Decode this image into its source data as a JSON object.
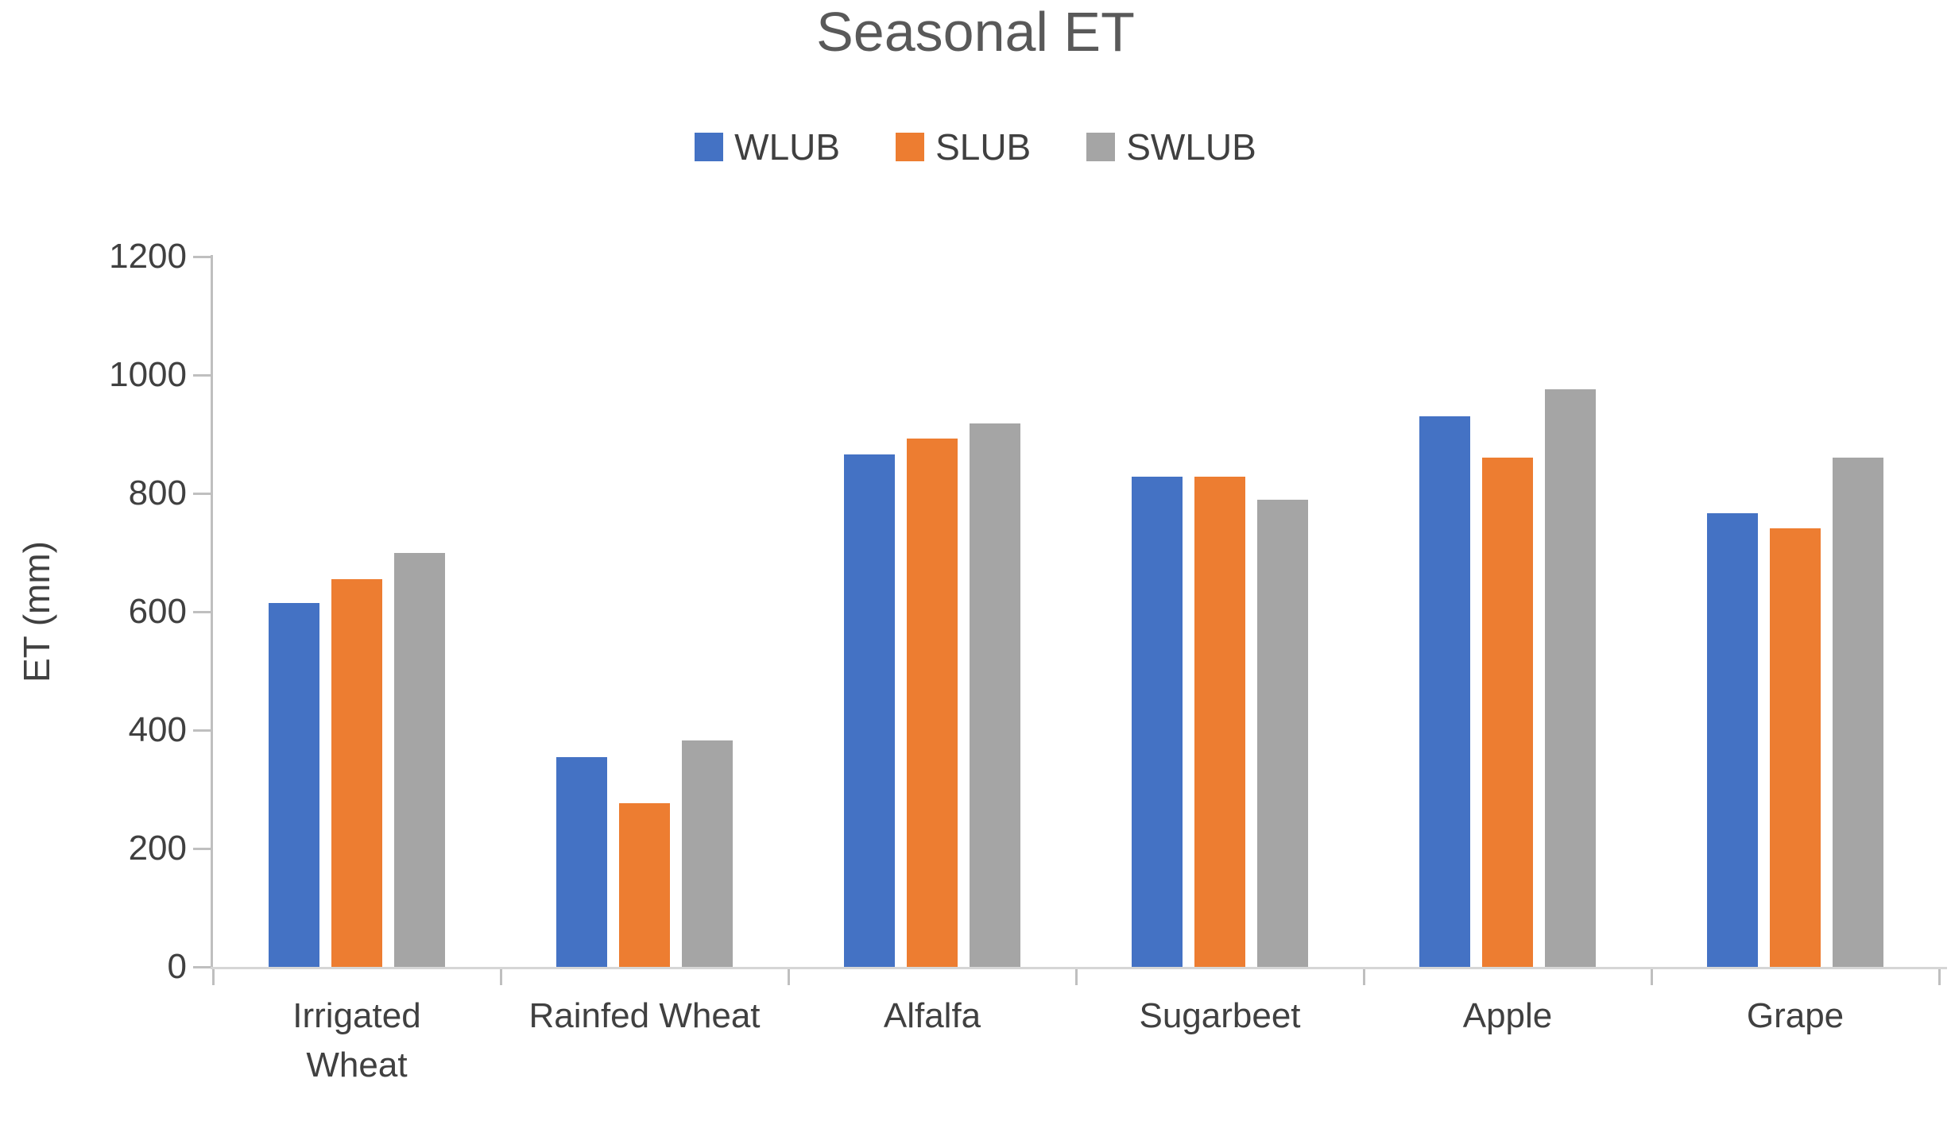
{
  "chart_data": {
    "type": "bar",
    "title": "Seasonal ET",
    "xlabel": "",
    "ylabel": "ET (mm)",
    "ylim": [
      0,
      1200
    ],
    "yticks": [
      0,
      200,
      400,
      600,
      800,
      1000,
      1200
    ],
    "grid": false,
    "legend_position": "top-center",
    "categories": [
      "Irrigated Wheat",
      "Rainfed Wheat",
      "Alfalfa",
      "Sugarbeet",
      "Apple",
      "Grape"
    ],
    "series": [
      {
        "name": "WLUB",
        "color": "#4472C4",
        "values": [
          615,
          355,
          866,
          828,
          930,
          767
        ]
      },
      {
        "name": "SLUB",
        "color": "#ED7D31",
        "values": [
          655,
          277,
          892,
          828,
          860,
          741
        ]
      },
      {
        "name": "SWLUB",
        "color": "#A5A5A5",
        "values": [
          700,
          382,
          918,
          789,
          976,
          860
        ]
      }
    ],
    "colors": {
      "axis_line": "#BFBFBF",
      "baseline": "#D6D6D6",
      "title_text": "#595959",
      "label_text": "#404040"
    }
  }
}
